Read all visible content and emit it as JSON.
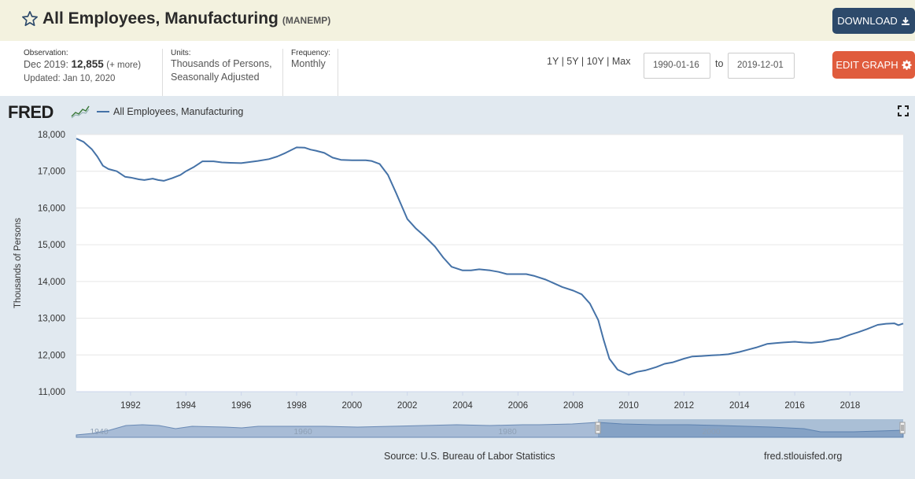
{
  "header": {
    "title": "All Employees, Manufacturing",
    "series_id": "(MANEMP)",
    "download_label": "DOWNLOAD",
    "star_icon": "star-outline-icon",
    "download_icon": "download-icon"
  },
  "meta": {
    "observation_label": "Observation:",
    "observation_date": "Dec 2019:",
    "observation_value": "12,855",
    "observation_more": "(+ more)",
    "updated": "Updated: Jan 10, 2020",
    "units_label": "Units:",
    "units_line1": "Thousands of Persons,",
    "units_line2": "Seasonally Adjusted",
    "frequency_label": "Frequency:",
    "frequency_value": "Monthly"
  },
  "controls": {
    "range_1y": "1Y",
    "range_5y": "5Y",
    "range_10y": "10Y",
    "range_max": "Max",
    "separator": "|",
    "start_date": "1990-01-16",
    "to_label": "to",
    "end_date": "2019-12-01",
    "edit_label": "EDIT GRAPH",
    "edit_icon": "gear-icon"
  },
  "graph": {
    "logo_text": "FRED",
    "legend_label": "All Employees, Manufacturing",
    "fullscreen_icon": "fullscreen-icon",
    "source": "Source: U.S. Bureau of Labor Statistics",
    "url": "fred.stlouisfed.org"
  },
  "colors": {
    "line": "#4572a7",
    "title_bar": "#f3f2df",
    "graph_bg": "#e1e9f0",
    "download_button": "#2d4a6b",
    "edit_button": "#e05c3d"
  },
  "chart_data": {
    "type": "line",
    "title": "",
    "xlabel": "",
    "ylabel": "Thousands of Persons",
    "xlim": [
      1990.04,
      2019.92
    ],
    "ylim": [
      11000,
      18000
    ],
    "yticks": [
      11000,
      12000,
      13000,
      14000,
      15000,
      16000,
      17000,
      18000
    ],
    "ytick_labels": [
      "11,000",
      "12,000",
      "13,000",
      "14,000",
      "15,000",
      "16,000",
      "17,000",
      "18,000"
    ],
    "xticks": [
      1992,
      1994,
      1996,
      1998,
      2000,
      2002,
      2004,
      2006,
      2008,
      2010,
      2012,
      2014,
      2016,
      2018
    ],
    "xtick_labels": [
      "1992",
      "1994",
      "1996",
      "1998",
      "2000",
      "2002",
      "2004",
      "2006",
      "2008",
      "2010",
      "2012",
      "2014",
      "2016",
      "2018"
    ],
    "grid": "horizontal",
    "legend": "top-left",
    "series": [
      {
        "name": "All Employees, Manufacturing",
        "color": "#4572a7",
        "x": [
          1990.0,
          1990.3,
          1990.6,
          1990.8,
          1991.0,
          1991.2,
          1991.5,
          1991.8,
          1992.0,
          1992.3,
          1992.5,
          1992.8,
          1993.0,
          1993.2,
          1993.5,
          1993.8,
          1994.0,
          1994.3,
          1994.6,
          1995.0,
          1995.3,
          1995.6,
          1996.0,
          1996.3,
          1996.6,
          1997.0,
          1997.3,
          1997.6,
          1998.0,
          1998.3,
          1998.5,
          1998.7,
          1999.0,
          1999.3,
          1999.6,
          2000.0,
          2000.3,
          2000.5,
          2000.7,
          2001.0,
          2001.3,
          2001.6,
          2002.0,
          2002.3,
          2002.6,
          2003.0,
          2003.3,
          2003.6,
          2004.0,
          2004.3,
          2004.6,
          2005.0,
          2005.3,
          2005.6,
          2006.0,
          2006.3,
          2006.6,
          2007.0,
          2007.3,
          2007.6,
          2008.0,
          2008.3,
          2008.6,
          2008.9,
          2009.1,
          2009.3,
          2009.6,
          2010.0,
          2010.3,
          2010.6,
          2011.0,
          2011.3,
          2011.6,
          2012.0,
          2012.3,
          2012.6,
          2013.0,
          2013.3,
          2013.6,
          2014.0,
          2014.3,
          2014.6,
          2015.0,
          2015.3,
          2015.6,
          2016.0,
          2016.3,
          2016.6,
          2017.0,
          2017.3,
          2017.6,
          2018.0,
          2018.3,
          2018.6,
          2019.0,
          2019.3,
          2019.6,
          2019.75,
          2019.92
        ],
        "values": [
          17890,
          17800,
          17600,
          17400,
          17150,
          17060,
          17000,
          16850,
          16830,
          16780,
          16760,
          16800,
          16760,
          16740,
          16810,
          16900,
          17000,
          17120,
          17270,
          17270,
          17240,
          17230,
          17220,
          17250,
          17280,
          17330,
          17400,
          17500,
          17650,
          17640,
          17590,
          17560,
          17500,
          17370,
          17310,
          17300,
          17300,
          17300,
          17280,
          17200,
          16900,
          16400,
          15700,
          15450,
          15250,
          14950,
          14650,
          14400,
          14300,
          14300,
          14330,
          14300,
          14260,
          14200,
          14200,
          14200,
          14150,
          14050,
          13950,
          13850,
          13750,
          13650,
          13400,
          12950,
          12400,
          11900,
          11600,
          11460,
          11540,
          11580,
          11670,
          11760,
          11800,
          11900,
          11960,
          11970,
          11990,
          12000,
          12020,
          12080,
          12140,
          12200,
          12300,
          12320,
          12340,
          12360,
          12340,
          12330,
          12360,
          12410,
          12440,
          12550,
          12620,
          12700,
          12820,
          12850,
          12860,
          12810,
          12855
        ]
      }
    ]
  },
  "navigator": {
    "tick_labels": [
      "1940",
      "1960",
      "1980",
      "2000"
    ]
  }
}
